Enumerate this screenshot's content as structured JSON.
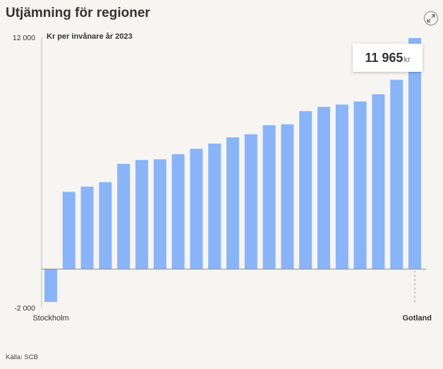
{
  "header": {
    "title": "Utjämning för regioner"
  },
  "icons": {
    "expand": "expand-arrows-icon"
  },
  "source": {
    "text": "Källa: SCB"
  },
  "tooltip": {
    "value": "11 965",
    "unit": "kr"
  },
  "colors": {
    "bar": "#8ab4f8",
    "axis": "#bbbbbb"
  },
  "chart_data": {
    "type": "bar",
    "subtitle": "Kr per invånare år 2023",
    "ylim": [
      -2000,
      12000
    ],
    "y_ticks": [
      "12 000",
      "-2 000"
    ],
    "y_tick_values": [
      12000,
      -2000
    ],
    "category_labels": [
      "Stockholm",
      "Gotland"
    ],
    "values": [
      -1700,
      4000,
      4270,
      4500,
      5450,
      5650,
      5680,
      5950,
      6230,
      6500,
      6820,
      6980,
      7450,
      7500,
      8180,
      8400,
      8520,
      8680,
      9050,
      9800,
      11965
    ],
    "highlighted_index": 20,
    "grid": false,
    "legend": "none"
  }
}
